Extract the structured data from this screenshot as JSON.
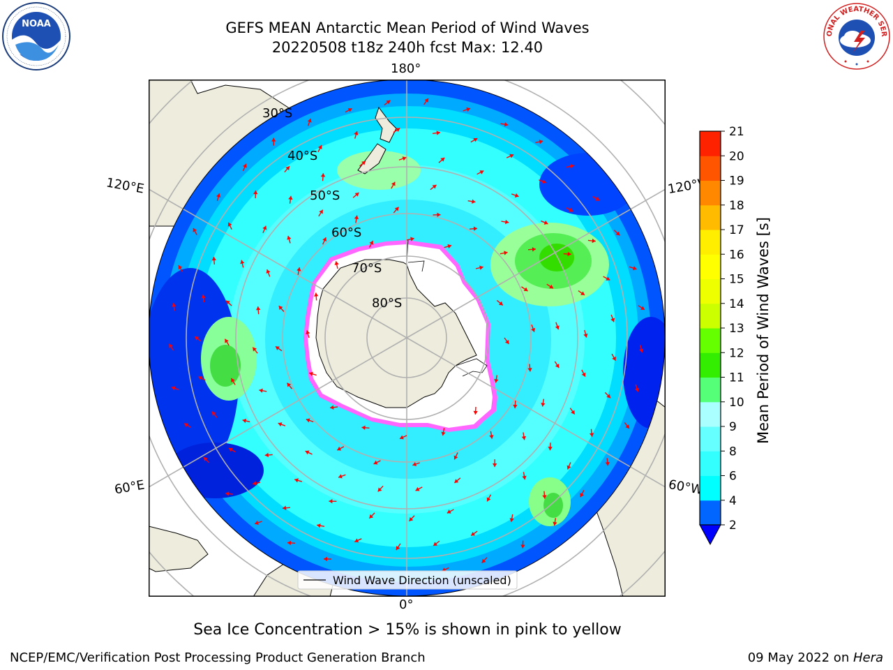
{
  "title": {
    "line1": "GEFS MEAN Antarctic Mean Period of Wind Waves",
    "line2": "20220508 t18z 240h fcst   Max: 12.40"
  },
  "logos": {
    "left": {
      "text": "NOAA",
      "ring": "NATIONAL OCEANIC AND ATMOSPHERIC ADMINISTRATION · U.S. DEPARTMENT OF COMMERCE",
      "icon": "noaa-logo"
    },
    "right": {
      "ring": "NATIONAL WEATHER SERVICE",
      "icon": "nws-logo"
    }
  },
  "map": {
    "longitude_labels": {
      "top": "180°",
      "bottom": "0°",
      "left_upper": "120°E",
      "left_lower": "60°E",
      "right_upper": "120°W",
      "right_lower": "60°W"
    },
    "latitude_labels": [
      "30°S",
      "40°S",
      "50°S",
      "60°S",
      "70°S",
      "80°S"
    ],
    "legend_label": "Wind Wave Direction (unscaled)",
    "arrow_color": "#ff0000",
    "land_color": "#eeecdc",
    "sea_ice_colors": [
      "#ff00ff",
      "#ffff00"
    ]
  },
  "colorbar": {
    "label": "Mean Period of Wind Waves [s]",
    "ticks": [
      "2",
      "4",
      "6",
      "8",
      "9",
      "10",
      "11",
      "12",
      "13",
      "14",
      "15",
      "16",
      "17",
      "18",
      "19",
      "20",
      "21"
    ],
    "colors": [
      "#0066ff",
      "#00ffff",
      "#33ffff",
      "#66ffff",
      "#aaffff",
      "#55ff77",
      "#33ee00",
      "#66ff00",
      "#ccff00",
      "#eeff00",
      "#ffff00",
      "#ffee00",
      "#ffbb00",
      "#ff8800",
      "#ff5500",
      "#ff2200",
      "#ff0000"
    ],
    "extend_color": "#0000ff"
  },
  "subtitle": "Sea Ice Concentration > 15% is shown in pink to yellow",
  "footer": {
    "left": "NCEP/EMC/Verification Post Processing Product Generation Branch",
    "right_prefix": "09 May 2022 on ",
    "right_host": "Hera"
  }
}
